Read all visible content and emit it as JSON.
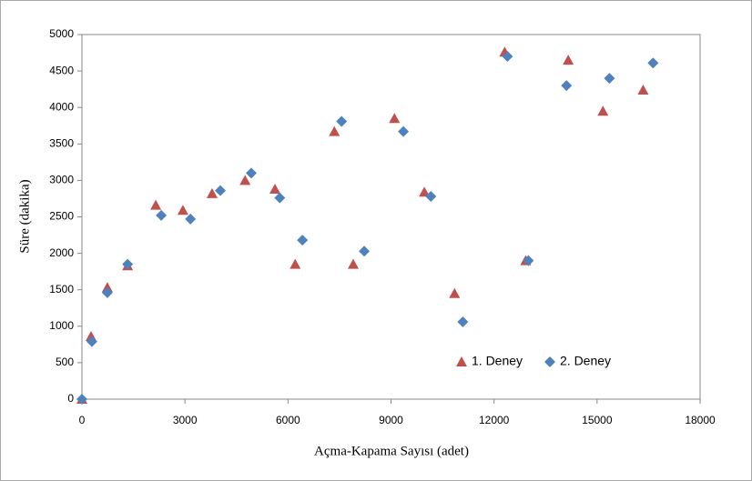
{
  "chart_data": {
    "type": "scatter",
    "x_label": "Açma-Kapama Sayısı (adet)",
    "y_label": "Süre (dakika)",
    "xlim": [
      0,
      18000
    ],
    "xticks": [
      0,
      3000,
      6000,
      9000,
      12000,
      15000,
      18000
    ],
    "ylim": [
      0,
      5000
    ],
    "yticks": [
      0,
      500,
      1000,
      1500,
      2000,
      2500,
      3000,
      3500,
      4000,
      4500,
      5000
    ],
    "grid": false,
    "legend": "inside-lower-right",
    "series": [
      {
        "name": "1. Deney",
        "color": "#c0504d",
        "marker": "triangle",
        "x": [
          0,
          265,
          740,
          1330,
          2150,
          2940,
          3790,
          4750,
          5620,
          6210,
          7350,
          7900,
          9100,
          9970,
          10850,
          12310,
          12920,
          14160,
          15170,
          16340
        ],
        "values": [
          0,
          860,
          1530,
          1830,
          2660,
          2590,
          2820,
          3000,
          2880,
          1850,
          3670,
          1850,
          3850,
          2840,
          1450,
          4760,
          1900,
          4650,
          3950,
          4240
        ]
      },
      {
        "name": "2. Deney",
        "color": "#4f81bd",
        "marker": "diamond",
        "x": [
          0,
          290,
          740,
          1330,
          2310,
          3160,
          4030,
          4930,
          5760,
          6420,
          7560,
          8220,
          9360,
          10160,
          11090,
          12390,
          13000,
          14110,
          15360,
          16630
        ],
        "values": [
          0,
          790,
          1460,
          1850,
          2520,
          2470,
          2860,
          3100,
          2760,
          2180,
          3810,
          2030,
          3670,
          2780,
          1060,
          4700,
          1900,
          4300,
          4400,
          4610
        ]
      }
    ]
  }
}
